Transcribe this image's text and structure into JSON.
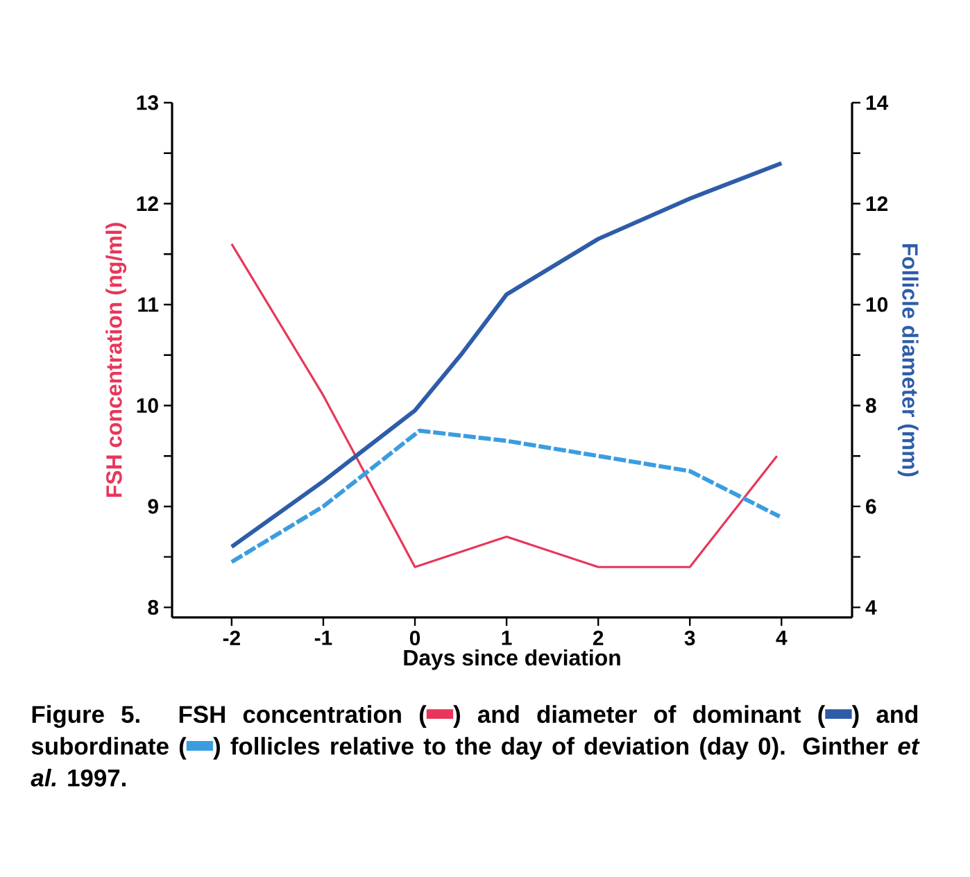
{
  "chart_data": {
    "type": "line",
    "xlabel": "Days since deviation",
    "ylabel": "FSH concentration (ng/ml)",
    "y2label": "Follicle diameter (mm)",
    "annotations": [
      "Figure 5.  FSH concentration (",
      ") and diameter of dominant (",
      ") and subordinate (",
      ") follicles relative to the day of deviation (day 0).  Ginther *et al.* 1997."
    ],
    "xlim": [
      -2.65,
      4.77
    ],
    "ylim": [
      7.9,
      13
    ],
    "y2lim": [
      3.8,
      14
    ],
    "xticks": [
      -2,
      -1,
      0,
      1,
      2,
      3,
      4
    ],
    "yticks": [
      8,
      {
        "value": 8.5,
        "label": null
      },
      9,
      {
        "value": 9.5,
        "label": null
      },
      10,
      {
        "value": 10.5,
        "label": null
      },
      11,
      {
        "value": 11.5,
        "label": null
      },
      12,
      {
        "value": 12.5,
        "label": null
      },
      13
    ],
    "y2ticks": [
      4,
      {
        "value": 5,
        "label": null
      },
      6,
      {
        "value": 7,
        "label": null
      },
      8,
      {
        "value": 9,
        "label": null
      },
      10,
      {
        "value": 11,
        "label": null
      },
      12,
      {
        "value": 13,
        "label": null
      },
      14
    ],
    "series": [
      {
        "color": "#e8365a",
        "line_style": "solid",
        "x": [
          -2,
          -1,
          0,
          1,
          2,
          3,
          3.95
        ],
        "values": [
          11.6,
          10.1,
          8.4,
          8.7,
          8.4,
          8.4,
          9.5
        ]
      },
      {
        "color": "#2e5ca8",
        "axis": "y2",
        "line_style": "solid",
        "x": [
          -2,
          -1,
          0,
          0.5,
          1,
          2,
          3,
          4
        ],
        "values": [
          5.2,
          6.5,
          7.9,
          9.0,
          10.2,
          11.3,
          12.1,
          12.8
        ]
      },
      {
        "color": "#3a9de0",
        "axis": "y2",
        "line_style": "dashed",
        "x": [
          -2,
          -1,
          0.05,
          1,
          2,
          3,
          3.98
        ],
        "values": [
          4.9,
          6.0,
          7.5,
          7.3,
          7.0,
          6.7,
          5.8
        ]
      }
    ]
  }
}
